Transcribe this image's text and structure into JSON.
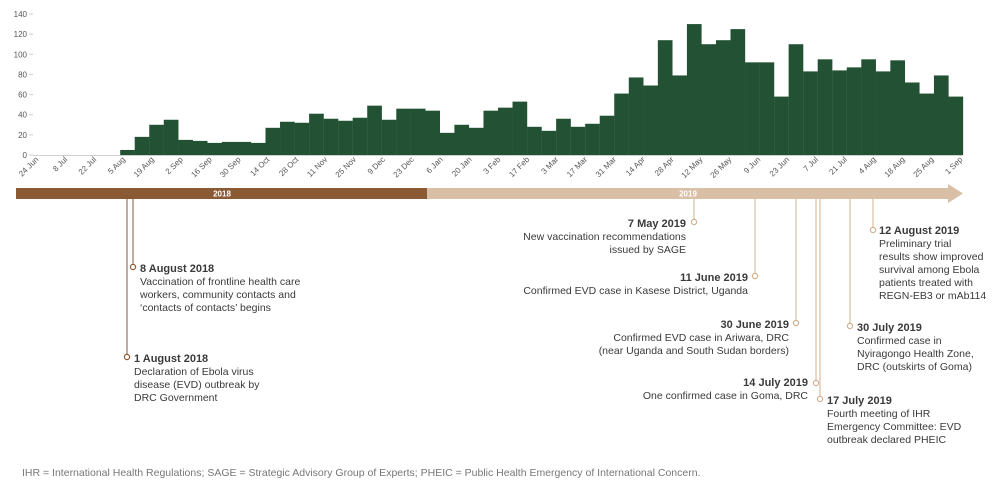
{
  "colors": {
    "bar": "#225233",
    "axis": "#cfcfcf",
    "timeline_2018": "#8a5a35",
    "timeline_2019": "#d9bfa5",
    "marker_2018": "#8a5a35",
    "marker_2019": "#d2b090"
  },
  "chart_data": {
    "type": "bar",
    "title": "",
    "xlabel": "",
    "ylabel": "",
    "ylim": [
      0,
      140
    ],
    "yticks": [
      0,
      20,
      40,
      60,
      80,
      100,
      120,
      140
    ],
    "grid": false,
    "x_tick_labels": [
      "24 Jun",
      "8 Jul",
      "22 Jul",
      "5 Aug",
      "19 Aug",
      "2 Sep",
      "16 Sep",
      "30 Sep",
      "14 Oct",
      "28 Oct",
      "11 Nov",
      "25 Nov",
      "9 Dec",
      "23 Dec",
      "6 Jan",
      "20 Jan",
      "3 Feb",
      "17 Feb",
      "3 Mar",
      "17 Mar",
      "31 Mar",
      "14 Apr",
      "28 Apr",
      "12 May",
      "26 May",
      "9 Jun",
      "23 Jun",
      "7 Jul",
      "21 Jul",
      "4 Aug",
      "18 Aug",
      "25 Aug",
      "1 Sep"
    ],
    "values": [
      0,
      0,
      0,
      0,
      0,
      0,
      5,
      18,
      30,
      35,
      15,
      14,
      12,
      13,
      13,
      12,
      27,
      33,
      32,
      41,
      36,
      34,
      37,
      49,
      35,
      46,
      46,
      44,
      22,
      30,
      27,
      44,
      47,
      53,
      28,
      24,
      36,
      28,
      31,
      39,
      61,
      77,
      69,
      114,
      79,
      130,
      110,
      114,
      125,
      92,
      92,
      58,
      110,
      83,
      95,
      84,
      87,
      95,
      83,
      94,
      72,
      61,
      79,
      58
    ]
  },
  "timeline": {
    "year_2018": "2018",
    "year_2019": "2019",
    "events": [
      {
        "title": "1 August 2018",
        "lines": [
          "Declaration of Ebola virus",
          "disease (EVD) outbreak by",
          "DRC Government"
        ]
      },
      {
        "title": "8 August 2018",
        "lines": [
          "Vaccination of frontline health care",
          "workers, community contacts and",
          "‘contacts of contacts’ begins"
        ]
      },
      {
        "title": "7 May 2019",
        "lines": [
          "New vaccination recommendations",
          "issued by SAGE"
        ]
      },
      {
        "title": "11 June 2019",
        "lines": [
          "Confirmed EVD case in Kasese District, Uganda"
        ]
      },
      {
        "title": "30 June 2019",
        "lines": [
          "Confirmed EVD case in Ariwara, DRC",
          "(near Uganda and South Sudan borders)"
        ]
      },
      {
        "title": "14 July 2019",
        "lines": [
          "One confirmed case in Goma, DRC"
        ]
      },
      {
        "title": "17 July 2019",
        "lines": [
          "Fourth meeting of IHR",
          "Emergency Committee: EVD",
          "outbreak declared PHEIC"
        ]
      },
      {
        "title": "30 July 2019",
        "lines": [
          "Confirmed case in",
          "Nyiragongo Health Zone,",
          "DRC (outskirts of Goma)"
        ]
      },
      {
        "title": "12 August 2019",
        "lines": [
          "Preliminary trial",
          "results show improved",
          "survival among Ebola",
          "patients treated with",
          "REGN-EB3 or mAb114"
        ]
      }
    ]
  },
  "footnote": "IHR = International Health Regulations; SAGE = Strategic Advisory Group of Experts; PHEIC = Public Health Emergency of International Concern."
}
